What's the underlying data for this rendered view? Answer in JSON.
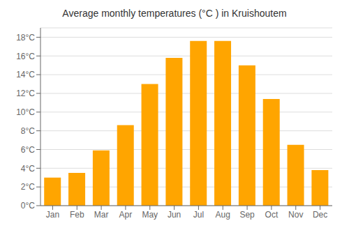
{
  "chart_data": {
    "type": "bar",
    "title": "Average monthly temperatures (°C ) in Kruishoutem",
    "categories": [
      "Jan",
      "Feb",
      "Mar",
      "Apr",
      "May",
      "Jun",
      "Jul",
      "Aug",
      "Sep",
      "Oct",
      "Nov",
      "Dec"
    ],
    "values": [
      3.0,
      3.5,
      5.9,
      8.6,
      13.0,
      15.8,
      17.6,
      17.6,
      15.0,
      11.4,
      6.5,
      3.8
    ],
    "color": "#FFA500",
    "ylim": [
      0,
      19
    ],
    "yticks": [
      {
        "value": 0,
        "label": "0°C"
      },
      {
        "value": 2,
        "label": "2°C"
      },
      {
        "value": 4,
        "label": "4°C"
      },
      {
        "value": 6,
        "label": "6°C"
      },
      {
        "value": 8,
        "label": "8°C"
      },
      {
        "value": 10,
        "label": "10°C"
      },
      {
        "value": 12,
        "label": "12°C"
      },
      {
        "value": 14,
        "label": "14°C"
      },
      {
        "value": 16,
        "label": "16°C"
      },
      {
        "value": 18,
        "label": "18°C"
      }
    ],
    "grid": true
  }
}
